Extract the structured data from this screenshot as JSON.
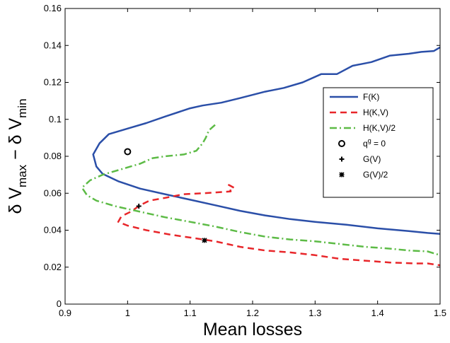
{
  "chart_data": {
    "type": "line",
    "xlabel": "Mean losses",
    "ylabel": {
      "base": "δ V",
      "sub1": "max",
      "sep": " − δ V",
      "sub2": "min"
    },
    "xlim": [
      0.9,
      1.5
    ],
    "ylim": [
      0,
      0.16
    ],
    "xticks": [
      0.9,
      1.0,
      1.1,
      1.2,
      1.3,
      1.4,
      1.5
    ],
    "xtick_labels": [
      "0.9",
      "1",
      "1.1",
      "1.2",
      "1.3",
      "1.4",
      "1.5"
    ],
    "yticks": [
      0,
      0.02,
      0.04,
      0.06,
      0.08,
      0.1,
      0.12,
      0.14,
      0.16
    ],
    "ytick_labels": [
      "0",
      "0.02",
      "0.04",
      "0.06",
      "0.08",
      "0.1",
      "0.12",
      "0.14",
      "0.16"
    ],
    "grid": false,
    "legend_position": "right",
    "series": [
      {
        "name": "F(K)",
        "color": "#2b4fa8",
        "dash": "solid",
        "points": [
          [
            1.5,
            0.139
          ],
          [
            1.49,
            0.137
          ],
          [
            1.47,
            0.1365
          ],
          [
            1.45,
            0.1355
          ],
          [
            1.42,
            0.1345
          ],
          [
            1.39,
            0.131
          ],
          [
            1.36,
            0.129
          ],
          [
            1.335,
            0.1245
          ],
          [
            1.31,
            0.1245
          ],
          [
            1.28,
            0.12
          ],
          [
            1.25,
            0.117
          ],
          [
            1.22,
            0.115
          ],
          [
            1.18,
            0.1115
          ],
          [
            1.15,
            0.109
          ],
          [
            1.12,
            0.1075
          ],
          [
            1.1,
            0.106
          ],
          [
            1.06,
            0.1015
          ],
          [
            1.03,
            0.098
          ],
          [
            1.0,
            0.095
          ],
          [
            0.97,
            0.092
          ],
          [
            0.955,
            0.087
          ],
          [
            0.945,
            0.081
          ],
          [
            0.95,
            0.0745
          ],
          [
            0.96,
            0.0705
          ],
          [
            0.985,
            0.0665
          ],
          [
            1.02,
            0.0625
          ],
          [
            1.06,
            0.0595
          ],
          [
            1.1,
            0.0565
          ],
          [
            1.14,
            0.0535
          ],
          [
            1.18,
            0.0505
          ],
          [
            1.22,
            0.048
          ],
          [
            1.26,
            0.046
          ],
          [
            1.3,
            0.0445
          ],
          [
            1.35,
            0.043
          ],
          [
            1.4,
            0.041
          ],
          [
            1.45,
            0.0395
          ],
          [
            1.48,
            0.0385
          ],
          [
            1.5,
            0.038
          ]
        ]
      },
      {
        "name": "H(K,V)",
        "color": "#e8262a",
        "dash": "dashed",
        "points": [
          [
            1.17,
            0.063
          ],
          [
            1.162,
            0.0645
          ],
          [
            1.165,
            0.061
          ],
          [
            1.145,
            0.0605
          ],
          [
            1.12,
            0.06
          ],
          [
            1.09,
            0.0595
          ],
          [
            1.06,
            0.0575
          ],
          [
            1.035,
            0.056
          ],
          [
            1.02,
            0.0535
          ],
          [
            1.005,
            0.05
          ],
          [
            0.99,
            0.0475
          ],
          [
            0.985,
            0.0445
          ],
          [
            1.0,
            0.0425
          ],
          [
            1.03,
            0.04
          ],
          [
            1.07,
            0.0375
          ],
          [
            1.1,
            0.036
          ],
          [
            1.14,
            0.034
          ],
          [
            1.18,
            0.031
          ],
          [
            1.22,
            0.029
          ],
          [
            1.26,
            0.028
          ],
          [
            1.3,
            0.0265
          ],
          [
            1.34,
            0.0245
          ],
          [
            1.38,
            0.0235
          ],
          [
            1.42,
            0.0225
          ],
          [
            1.46,
            0.022
          ],
          [
            1.48,
            0.022
          ],
          [
            1.5,
            0.021
          ]
        ]
      },
      {
        "name": "H(K,V)/2",
        "color": "#5dbb46",
        "dash": "dashdot",
        "points": [
          [
            1.14,
            0.097
          ],
          [
            1.13,
            0.094
          ],
          [
            1.125,
            0.09
          ],
          [
            1.12,
            0.087
          ],
          [
            1.11,
            0.083
          ],
          [
            1.09,
            0.081
          ],
          [
            1.06,
            0.08
          ],
          [
            1.04,
            0.079
          ],
          [
            1.02,
            0.076
          ],
          [
            0.99,
            0.073
          ],
          [
            0.96,
            0.07
          ],
          [
            0.94,
            0.067
          ],
          [
            0.927,
            0.063
          ],
          [
            0.935,
            0.059
          ],
          [
            0.95,
            0.056
          ],
          [
            0.98,
            0.053
          ],
          [
            1.02,
            0.05
          ],
          [
            1.06,
            0.047
          ],
          [
            1.1,
            0.0445
          ],
          [
            1.14,
            0.042
          ],
          [
            1.18,
            0.039
          ],
          [
            1.22,
            0.0365
          ],
          [
            1.26,
            0.035
          ],
          [
            1.3,
            0.034
          ],
          [
            1.34,
            0.0325
          ],
          [
            1.38,
            0.031
          ],
          [
            1.42,
            0.03
          ],
          [
            1.45,
            0.029
          ],
          [
            1.48,
            0.0285
          ],
          [
            1.5,
            0.0265
          ]
        ]
      }
    ],
    "markers": [
      {
        "name": "q^g = 0",
        "label_base": "q",
        "label_sup": "g",
        "label_rest": " = 0",
        "marker": "circle",
        "x": 1.0,
        "y": 0.0825
      },
      {
        "name": "G(V)",
        "label": "G(V)",
        "marker": "plus",
        "x": 1.018,
        "y": 0.053
      },
      {
        "name": "G(V)/2",
        "label": "G(V)/2",
        "marker": "star",
        "x": 1.123,
        "y": 0.0345
      }
    ]
  }
}
